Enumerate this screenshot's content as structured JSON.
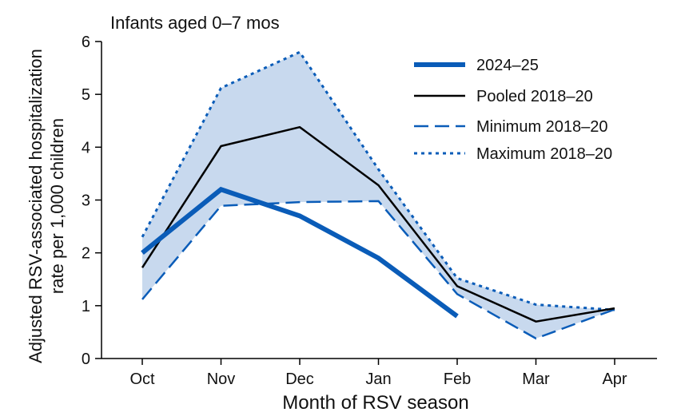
{
  "chart_data": {
    "type": "line",
    "title": "Infants aged 0–7 mos",
    "xlabel": "Month of RSV season",
    "ylabel_line1": "Adjusted RSV-associated hospitalization",
    "ylabel_line2": "rate per 1,000 children",
    "categories": [
      "Oct",
      "Nov",
      "Dec",
      "Jan",
      "Feb",
      "Mar",
      "Apr"
    ],
    "ylim": [
      0,
      6
    ],
    "yticks": [
      0,
      1,
      2,
      3,
      4,
      5,
      6
    ],
    "grid": false,
    "legend_position": "top-right",
    "series": [
      {
        "name": "2024–25",
        "style": "solid-thick",
        "color": "#0a5cb8",
        "values": [
          2.0,
          3.2,
          2.7,
          1.9,
          0.8,
          null,
          null
        ]
      },
      {
        "name": "Pooled 2018–20",
        "style": "solid-thin",
        "color": "#000000",
        "values": [
          1.72,
          4.02,
          4.38,
          3.28,
          1.37,
          0.7,
          0.95
        ]
      },
      {
        "name": "Minimum 2018–20",
        "style": "dashed",
        "color": "#0a5cb8",
        "values": [
          1.12,
          2.89,
          2.96,
          2.98,
          1.22,
          0.38,
          0.93
        ]
      },
      {
        "name": "Maximum 2018–20",
        "style": "dotted",
        "color": "#0a5cb8",
        "values": [
          2.3,
          5.12,
          5.8,
          3.58,
          1.52,
          1.02,
          0.92
        ]
      }
    ],
    "band": {
      "lower_series": "Minimum 2018–20",
      "upper_series": "Maximum 2018–20",
      "fill_color": "#c8d9ee"
    }
  }
}
